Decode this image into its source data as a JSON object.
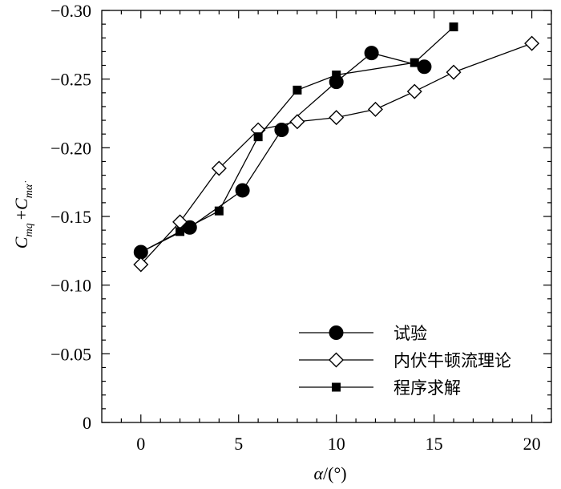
{
  "chart_data": {
    "type": "line",
    "title": "",
    "xlabel": {
      "symbol": "α",
      "unit": "/(°)"
    },
    "ylabel": {
      "term1_base": "C",
      "term1_sub": "mq",
      "plus": "+",
      "term2_base": "C",
      "term2_sub": "mα̇"
    },
    "xlim": [
      -2,
      21
    ],
    "ylim": [
      0,
      -0.3
    ],
    "y_axis_inverted": true,
    "x_ticks": [
      0,
      5,
      10,
      15,
      20
    ],
    "x_tick_labels": [
      "0",
      "5",
      "10",
      "15",
      "20"
    ],
    "y_ticks": [
      0,
      -0.05,
      -0.1,
      -0.15,
      -0.2,
      -0.25,
      -0.3
    ],
    "y_tick_labels": [
      "0",
      "−0.05",
      "−0.10",
      "−0.15",
      "−0.20",
      "−0.25",
      "−0.30"
    ],
    "grid": false,
    "legend_position": "bottom-right",
    "series": [
      {
        "name": "试验",
        "marker": "filled-circle",
        "color": "#000000",
        "x": [
          0,
          2.5,
          5.2,
          7.2,
          10,
          11.8,
          14.5
        ],
        "y": [
          -0.124,
          -0.142,
          -0.169,
          -0.213,
          -0.248,
          -0.269,
          -0.259
        ]
      },
      {
        "name": "内伏牛顿流理论",
        "marker": "open-diamond",
        "color": "#000000",
        "x": [
          0,
          2,
          4,
          6,
          8,
          10,
          12,
          14,
          16,
          20
        ],
        "y": [
          -0.115,
          -0.146,
          -0.185,
          -0.213,
          -0.219,
          -0.222,
          -0.228,
          -0.241,
          -0.255,
          -0.276
        ]
      },
      {
        "name": "程序求解",
        "marker": "filled-square",
        "color": "#000000",
        "x": [
          0,
          2,
          4,
          6,
          8,
          10,
          14,
          16
        ],
        "y": [
          -0.124,
          -0.139,
          -0.154,
          -0.208,
          -0.242,
          -0.253,
          -0.262,
          -0.288
        ]
      }
    ]
  }
}
